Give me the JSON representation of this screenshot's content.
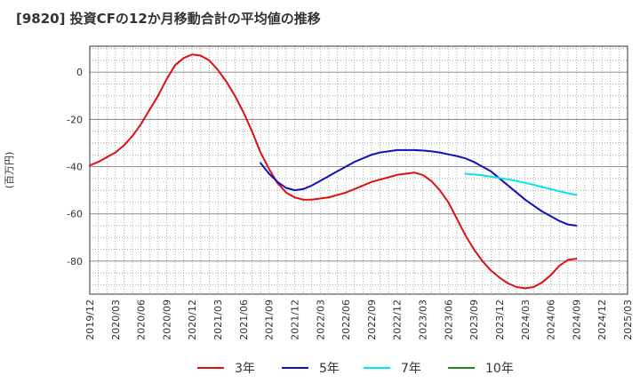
{
  "chart_data": {
    "type": "line",
    "title": "[9820]  投資CFの12か月移動合計の平均値の推移",
    "ylabel": "(百万円)",
    "xlabel": "",
    "ylim": [
      -94,
      11
    ],
    "yticks": [
      0,
      -20,
      -40,
      -60,
      -80
    ],
    "x_ticks": [
      "2019/12",
      "2020/03",
      "2020/06",
      "2020/09",
      "2020/12",
      "2021/03",
      "2021/06",
      "2021/09",
      "2021/12",
      "2022/03",
      "2022/06",
      "2022/09",
      "2022/12",
      "2023/03",
      "2023/06",
      "2023/09",
      "2023/12",
      "2024/03",
      "2024/06",
      "2024/09",
      "2024/12",
      "2025/03"
    ],
    "grid": true,
    "legend_position": "bottom",
    "series": [
      {
        "name": "3年",
        "color": "#dd1111",
        "x": [
          "2019/12",
          "2020/01",
          "2020/02",
          "2020/03",
          "2020/04",
          "2020/05",
          "2020/06",
          "2020/07",
          "2020/08",
          "2020/09",
          "2020/10",
          "2020/11",
          "2020/12",
          "2021/01",
          "2021/02",
          "2021/03",
          "2021/04",
          "2021/05",
          "2021/06",
          "2021/07",
          "2021/08",
          "2021/09",
          "2021/10",
          "2021/11",
          "2021/12",
          "2022/01",
          "2022/02",
          "2022/03",
          "2022/04",
          "2022/05",
          "2022/06",
          "2022/07",
          "2022/08",
          "2022/09",
          "2022/10",
          "2022/11",
          "2022/12",
          "2023/01",
          "2023/02",
          "2023/03",
          "2023/04",
          "2023/05",
          "2023/06",
          "2023/07",
          "2023/08",
          "2023/09",
          "2023/10",
          "2023/11",
          "2023/12",
          "2024/01",
          "2024/02",
          "2024/03",
          "2024/04",
          "2024/05",
          "2024/06",
          "2024/07",
          "2024/08",
          "2024/09"
        ],
        "values": [
          -39.5,
          -38,
          -36,
          -34,
          -31,
          -27,
          -22,
          -16,
          -10,
          -3,
          3,
          6,
          7.5,
          7,
          5,
          1,
          -4,
          -10,
          -17,
          -25,
          -34,
          -41,
          -47,
          -51,
          -53,
          -54,
          -54,
          -53.5,
          -53,
          -52,
          -51,
          -49.5,
          -48,
          -46.5,
          -45.5,
          -44.5,
          -43.5,
          -43,
          -42.5,
          -43.5,
          -46,
          -50,
          -55,
          -62,
          -69,
          -75,
          -80,
          -84,
          -87,
          -89.5,
          -91,
          -91.5,
          -91,
          -89,
          -86,
          -82,
          -79.5,
          -79
        ]
      },
      {
        "name": "5年",
        "color": "#1111bb",
        "x": [
          "2021/08",
          "2021/09",
          "2021/10",
          "2021/11",
          "2021/12",
          "2022/01",
          "2022/02",
          "2022/03",
          "2022/04",
          "2022/05",
          "2022/06",
          "2022/07",
          "2022/08",
          "2022/09",
          "2022/10",
          "2022/11",
          "2022/12",
          "2023/01",
          "2023/02",
          "2023/03",
          "2023/04",
          "2023/05",
          "2023/06",
          "2023/07",
          "2023/08",
          "2023/09",
          "2023/10",
          "2023/11",
          "2023/12",
          "2024/01",
          "2024/02",
          "2024/03",
          "2024/04",
          "2024/05",
          "2024/06",
          "2024/07",
          "2024/08",
          "2024/09"
        ],
        "values": [
          -38.5,
          -43,
          -46.5,
          -49,
          -50,
          -49.5,
          -48,
          -46,
          -44,
          -42,
          -40,
          -38,
          -36.5,
          -35,
          -34,
          -33.5,
          -33,
          -33,
          -33,
          -33.2,
          -33.5,
          -34,
          -34.8,
          -35.5,
          -36.5,
          -38,
          -40,
          -42,
          -45,
          -48,
          -51,
          -54,
          -56.5,
          -59,
          -61,
          -63,
          -64.5,
          -65
        ]
      },
      {
        "name": "7年",
        "color": "#00e5ee",
        "x": [
          "2023/08",
          "2023/09",
          "2023/10",
          "2023/11",
          "2023/12",
          "2024/01",
          "2024/02",
          "2024/03",
          "2024/04",
          "2024/05",
          "2024/06",
          "2024/07",
          "2024/08",
          "2024/09"
        ],
        "values": [
          -43,
          -43.3,
          -43.7,
          -44.2,
          -44.8,
          -45.4,
          -46.1,
          -46.9,
          -47.7,
          -48.6,
          -49.5,
          -50.4,
          -51.3,
          -52
        ]
      },
      {
        "name": "10年",
        "color": "#228822",
        "x": [],
        "values": []
      }
    ]
  }
}
